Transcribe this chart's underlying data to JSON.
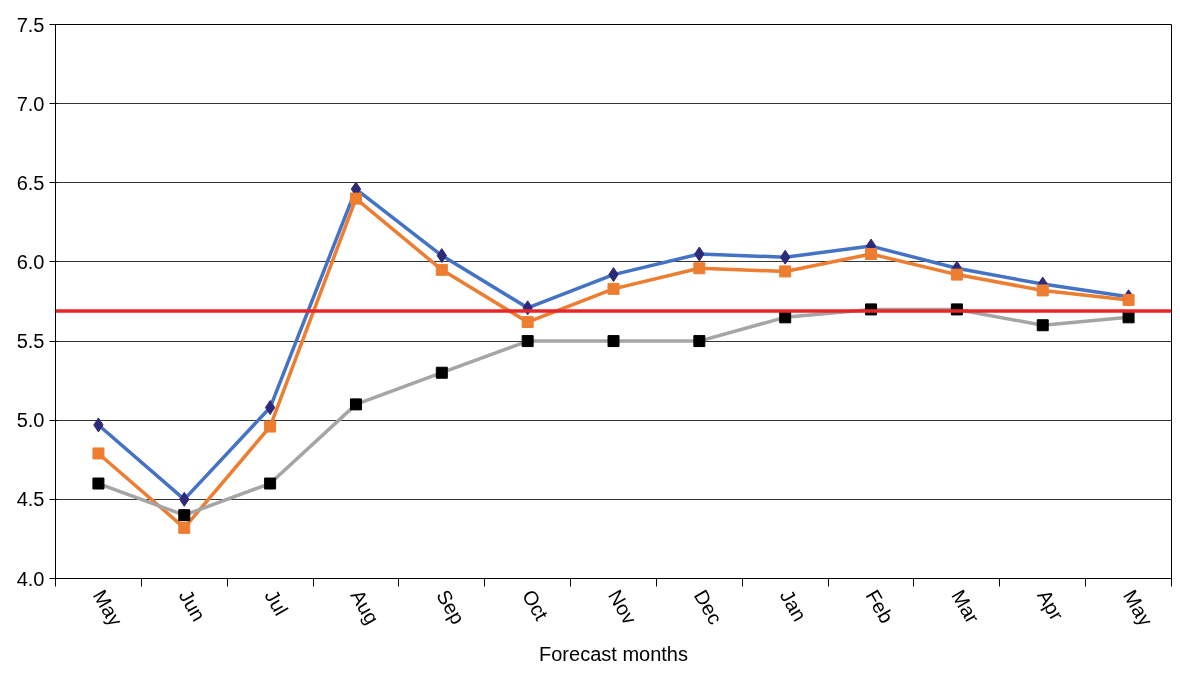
{
  "chart_data": {
    "type": "line",
    "xlabel": "Forecast months",
    "categories": [
      "May",
      "Jun",
      "Jul",
      "Aug",
      "Sep",
      "Oct",
      "Nov",
      "Dec",
      "Jan",
      "Feb",
      "Mar",
      "Apr",
      "May"
    ],
    "series": [
      {
        "color": "#4472c4",
        "marker": "diamond",
        "colors": [
          "#2e2a7a",
          "#2e2a7a",
          "#2e2a7a",
          "#2e2a7a",
          "#2e2a7a",
          "#2e2a7a",
          "#2e2a7a",
          "#2e2a7a",
          "#2e2a7a",
          "#2e2a7a",
          "#2e2a7a",
          "#2e2a7a",
          "#2e2a7a"
        ],
        "values": [
          4.97,
          4.5,
          5.08,
          6.46,
          6.04,
          5.71,
          5.92,
          6.05,
          6.03,
          6.1,
          5.96,
          5.86,
          5.78
        ]
      },
      {
        "color": "#ed7d31",
        "marker": "square",
        "colors": [
          "#ed7d31",
          "#ed7d31",
          "#ed7d31",
          "#ed7d31",
          "#ed7d31",
          "#ed7d31",
          "#ed7d31",
          "#ed7d31",
          "#ed7d31",
          "#ed7d31",
          "#ed7d31",
          "#ed7d31",
          "#ed7d31"
        ],
        "values": [
          4.79,
          4.32,
          4.96,
          6.4,
          5.95,
          5.62,
          5.83,
          5.96,
          5.94,
          6.05,
          5.92,
          5.82,
          5.76
        ]
      },
      {
        "color": "#a5a5a5",
        "marker": "square",
        "colors": [
          "#000000",
          "#000000",
          "#000000",
          "#000000",
          "#000000",
          "#000000",
          "#000000",
          "#000000",
          "#000000",
          "#000000",
          "#000000",
          "#000000",
          "#000000"
        ],
        "values": [
          4.6,
          4.4,
          4.6,
          5.1,
          5.3,
          5.5,
          5.5,
          5.5,
          5.65,
          5.7,
          5.7,
          5.6,
          5.65
        ]
      }
    ],
    "ref_lines": [
      {
        "axis": "y",
        "value": 5.69,
        "color": "#e8262a"
      }
    ],
    "ylim": [
      4.0,
      7.5
    ],
    "yticks": [
      {
        "value": 4.0,
        "label": "4.0"
      },
      {
        "value": 4.5,
        "label": "4.5"
      },
      {
        "value": 5.0,
        "label": "5.0"
      },
      {
        "value": 5.5,
        "label": "5.5"
      },
      {
        "value": 6.0,
        "label": "6.0"
      },
      {
        "value": 6.5,
        "label": "6.5"
      },
      {
        "value": 7.0,
        "label": "7.0"
      },
      {
        "value": 7.5,
        "label": "7.5"
      }
    ],
    "grid": "y"
  }
}
